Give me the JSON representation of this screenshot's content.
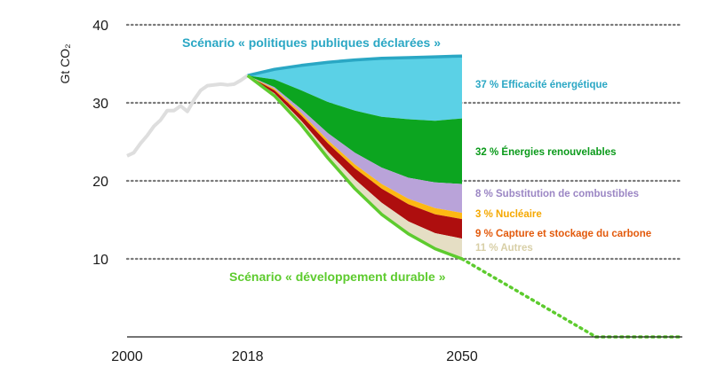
{
  "chart_data": {
    "type": "area",
    "ylabel": "Gt CO₂",
    "x_ticks": [
      "2000",
      "2018",
      "2050"
    ],
    "y_ticks": [
      "10",
      "20",
      "30",
      "40"
    ],
    "ylim": [
      0,
      40
    ],
    "grid": "horizontal dotted",
    "history": {
      "x": [
        2000,
        2001,
        2002,
        2003,
        2004,
        2005,
        2006,
        2007,
        2008,
        2009,
        2010,
        2011,
        2012,
        2013,
        2014,
        2015,
        2016,
        2017,
        2018
      ],
      "y": [
        23.2,
        23.6,
        24.8,
        25.8,
        27.0,
        27.8,
        29.0,
        29.0,
        29.6,
        28.9,
        30.4,
        31.6,
        32.2,
        32.3,
        32.4,
        32.3,
        32.4,
        32.9,
        33.5
      ]
    },
    "scenarios": {
      "stated": {
        "label": "Scénario « politiques publiques déclarées »",
        "color": "#2AA7C4",
        "x": [
          2018,
          2022,
          2026,
          2030,
          2034,
          2038,
          2042,
          2046,
          2050
        ],
        "y": [
          33.5,
          34.3,
          34.8,
          35.2,
          35.5,
          35.7,
          35.8,
          35.9,
          36.0
        ]
      },
      "sustainable": {
        "label": "Scénario « développement durable »",
        "color": "#5DCB2E",
        "x": [
          2018,
          2022,
          2026,
          2030,
          2034,
          2038,
          2042,
          2046,
          2050
        ],
        "y": [
          33.5,
          30.9,
          27.2,
          22.9,
          19.0,
          15.7,
          13.2,
          11.3,
          10.0
        ],
        "extension": {
          "x": [
            2050,
            2070
          ],
          "y": [
            10.0,
            0
          ]
        }
      }
    },
    "wedge_tops_x": [
      2018,
      2022,
      2026,
      2030,
      2034,
      2038,
      2042,
      2046,
      2050
    ],
    "wedges": [
      {
        "name": "37 % Efficacité énergétique",
        "color": "#5BD1E6",
        "label_color": "#2AA7C4",
        "top": [
          33.5,
          34.3,
          34.8,
          35.2,
          35.5,
          35.7,
          35.8,
          35.9,
          36.0
        ]
      },
      {
        "name": "32 % Énergies renouvelables",
        "color": "#0CA520",
        "label_color": "#0A9A1A",
        "top": [
          33.5,
          33.0,
          31.6,
          30.1,
          29.0,
          28.2,
          27.9,
          27.7,
          28.0
        ]
      },
      {
        "name": "8 % Substitution de combustibles",
        "color": "#B9A3D9",
        "label_color": "#9B86C4",
        "top": [
          33.5,
          32.0,
          29.2,
          26.1,
          23.6,
          21.7,
          20.4,
          19.8,
          19.6
        ]
      },
      {
        "name": "3 % Nucléaire",
        "color": "#FDB813",
        "label_color": "#F5A800",
        "top": [
          33.5,
          31.8,
          28.7,
          25.2,
          22.1,
          19.6,
          17.7,
          16.5,
          15.9
        ]
      },
      {
        "name": "9 % Capture et stockage du carbone",
        "color": "#AE0E0E",
        "label_color": "#E35A0C",
        "top": [
          33.5,
          31.6,
          28.4,
          24.8,
          21.6,
          19.0,
          17.0,
          15.7,
          15.1
        ]
      },
      {
        "name": "11 % Autres",
        "color": "#E5DEC4",
        "label_color": "#D8CFA7",
        "top": [
          33.5,
          31.2,
          27.7,
          23.7,
          20.2,
          17.2,
          14.8,
          13.3,
          12.6
        ]
      }
    ]
  }
}
